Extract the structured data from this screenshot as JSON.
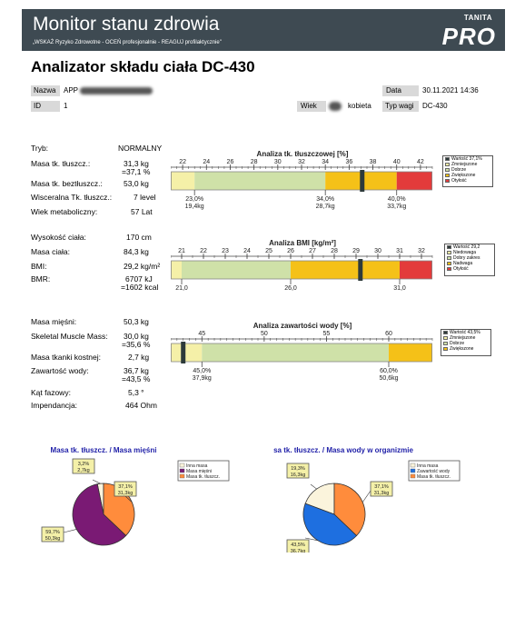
{
  "header": {
    "title": "Monitor stanu zdrowia",
    "subtitle": "„WSKAŻ Ryzyko Zdrowotne - OCEŃ profesjonalnie - REAGUJ profilaktycznie\"",
    "brand_top": "TANITA",
    "brand_main": "PRO"
  },
  "report_title": "Analizator składu ciała DC-430",
  "info": {
    "name_label": "Nazwa",
    "name_value": "APP",
    "date_label": "Data",
    "date_value": "30.11.2021 14:36",
    "id_label": "ID",
    "id_value": "1",
    "age_label": "Wiek",
    "gender_value": "kobieta",
    "weigh_type_label": "Typ wagi",
    "weigh_type_value": "DC-430"
  },
  "section1": {
    "rows": [
      {
        "label": "Tryb:",
        "value": "NORMALNY",
        "value2": ""
      },
      {
        "label": "Masa tk. tłuszcz.:",
        "value": "31,3 kg",
        "value2": "=37,1 %"
      },
      {
        "label": "Masa tk. beztłuszcz.:",
        "value": "53,0 kg",
        "value2": ""
      },
      {
        "label": "Wisceralna Tk. tłuszcz.:",
        "value": "7 level",
        "value2": ""
      },
      {
        "label": "Wiek metaboliczny:",
        "value": "57 Lat",
        "value2": ""
      }
    ]
  },
  "section2": {
    "rows": [
      {
        "label": "Wysokość ciała:",
        "value": "170 cm",
        "value2": ""
      },
      {
        "label": "Masa ciała:",
        "value": "84,3 kg",
        "value2": ""
      },
      {
        "label": "BMI:",
        "value": "29,2 kg/m²",
        "value2": ""
      },
      {
        "label": "BMR:",
        "value": "6707 kJ",
        "value2": "=1602 kcal"
      }
    ]
  },
  "section3": {
    "rows": [
      {
        "label": "Masa mięśni:",
        "value": "50,3 kg",
        "value2": ""
      },
      {
        "label": "Skeletal Muscle Mass:",
        "value": "30,0 kg",
        "value2": "=35,6 %"
      },
      {
        "label": "Masa tkanki kostnej:",
        "value": "2,7 kg",
        "value2": ""
      },
      {
        "label": "Zawartość wody:",
        "value": "36,7 kg",
        "value2": "=43,5 %"
      },
      {
        "label": "Kąt fazowy:",
        "value": "5,3 °",
        "value2": ""
      },
      {
        "label": "Impendancja:",
        "value": "464 Ohm",
        "value2": ""
      }
    ]
  },
  "colors": {
    "low": "#f5f0a8",
    "ok": "#cfe1a8",
    "high": "#f5c118",
    "very_high": "#e33b3b",
    "marker": "#2d3a3a",
    "pie_other": "#fbf4dc",
    "pie_muscle": "#7a1a74",
    "pie_fat": "#ff8c3c",
    "pie_water": "#1e6fe0"
  },
  "chart_data": [
    {
      "type": "bar",
      "title": "Analiza tk. tłuszczowej [%]",
      "ticks": [
        "22",
        "24",
        "26",
        "28",
        "30",
        "32",
        "34",
        "36",
        "38",
        "40",
        "42"
      ],
      "range": [
        21,
        43
      ],
      "bands": [
        {
          "from": 21,
          "to": 23,
          "name": "Zmniejszone",
          "color_key": "low"
        },
        {
          "from": 23,
          "to": 34,
          "name": "Dobrze",
          "color_key": "ok"
        },
        {
          "from": 34,
          "to": 40,
          "name": "Zwiększone",
          "color_key": "high"
        },
        {
          "from": 40,
          "to": 43,
          "name": "Otyłość",
          "color_key": "very_high"
        }
      ],
      "marker_value": 37.1,
      "legend": [
        {
          "text": "Wartość 37,1%",
          "color_key": "marker"
        },
        {
          "text": "Zmniejszone",
          "color_key": "low"
        },
        {
          "text": "Dobrze",
          "color_key": "ok"
        },
        {
          "text": "Zwiększone",
          "color_key": "high"
        },
        {
          "text": "Otyłość",
          "color_key": "very_high"
        }
      ],
      "annotations": [
        {
          "x": 23,
          "line1": "23,0%",
          "line2": "19,4kg"
        },
        {
          "x": 34,
          "line1": "34,0%",
          "line2": "28,7kg"
        },
        {
          "x": 40,
          "line1": "40,0%",
          "line2": "33,7kg"
        }
      ]
    },
    {
      "type": "bar",
      "title": "Analiza BMI [kg/m²]",
      "ticks": [
        "20",
        "21",
        "22",
        "23",
        "24",
        "25",
        "26",
        "27",
        "28",
        "29",
        "30",
        "31",
        "32"
      ],
      "range": [
        20.5,
        32.5
      ],
      "bands": [
        {
          "from": 20.5,
          "to": 21,
          "name": "Niedowaga",
          "color_key": "low"
        },
        {
          "from": 21,
          "to": 26,
          "name": "Dobry zakres",
          "color_key": "ok"
        },
        {
          "from": 26,
          "to": 31,
          "name": "Nadwaga",
          "color_key": "high"
        },
        {
          "from": 31,
          "to": 32.5,
          "name": "Otyłość",
          "color_key": "very_high"
        }
      ],
      "marker_value": 29.2,
      "legend": [
        {
          "text": "Wartość 29,2",
          "color_key": "marker"
        },
        {
          "text": "Niedowaga",
          "color_key": "low"
        },
        {
          "text": "Dobry zakres",
          "color_key": "ok"
        },
        {
          "text": "Nadwaga",
          "color_key": "high"
        },
        {
          "text": "Otyłość",
          "color_key": "very_high"
        }
      ],
      "annotations": [
        {
          "x": 21,
          "line1": "21,0",
          "line2": ""
        },
        {
          "x": 26,
          "line1": "26,0",
          "line2": ""
        },
        {
          "x": 31,
          "line1": "31,0",
          "line2": ""
        }
      ]
    },
    {
      "type": "bar",
      "title": "Analiza zawartości wody [%]",
      "ticks": [
        "45",
        "50",
        "55",
        "60"
      ],
      "range": [
        42.5,
        63.5
      ],
      "bands": [
        {
          "from": 42.5,
          "to": 45,
          "name": "Zmniejszone",
          "color_key": "low"
        },
        {
          "from": 45,
          "to": 60,
          "name": "Dobrze",
          "color_key": "ok"
        },
        {
          "from": 60,
          "to": 63.5,
          "name": "Zwiększone",
          "color_key": "high"
        }
      ],
      "marker_value": 43.5,
      "legend": [
        {
          "text": "Wartość 43,5%",
          "color_key": "marker"
        },
        {
          "text": "Zmniejszone",
          "color_key": "low"
        },
        {
          "text": "Dobrze",
          "color_key": "ok"
        },
        {
          "text": "Zwiększone",
          "color_key": "high"
        }
      ],
      "annotations": [
        {
          "x": 45,
          "line1": "45,0%",
          "line2": "37,9kg"
        },
        {
          "x": 60,
          "line1": "60,0%",
          "line2": "50,6kg"
        }
      ]
    },
    {
      "type": "pie",
      "title": "Masa tk. tłuszcz. / Masa mięśni",
      "slices": [
        {
          "name": "Inna masa",
          "value": 3.2,
          "label1": "3,2%",
          "label2": "2,7kg",
          "color_key": "pie_other"
        },
        {
          "name": "Masa mięśni",
          "value": 59.7,
          "label1": "59,7%",
          "label2": "50,3kg",
          "color_key": "pie_muscle"
        },
        {
          "name": "Masa tk. tłuszcz.",
          "value": 37.1,
          "label1": "37,1%",
          "label2": "31,3kg",
          "color_key": "pie_fat"
        }
      ]
    },
    {
      "type": "pie",
      "title": "sa tk. tłuszcz. / Masa wody w organizmie",
      "slices": [
        {
          "name": "Inna masa",
          "value": 19.3,
          "label1": "19,3%",
          "label2": "16,3kg",
          "color_key": "pie_other"
        },
        {
          "name": "Zawartość wody",
          "value": 43.5,
          "label1": "43,5%",
          "label2": "36,7kg",
          "color_key": "pie_water"
        },
        {
          "name": "Masa tk. tłuszcz.",
          "value": 37.1,
          "label1": "37,1%",
          "label2": "31,3kg",
          "color_key": "pie_fat"
        }
      ]
    }
  ]
}
